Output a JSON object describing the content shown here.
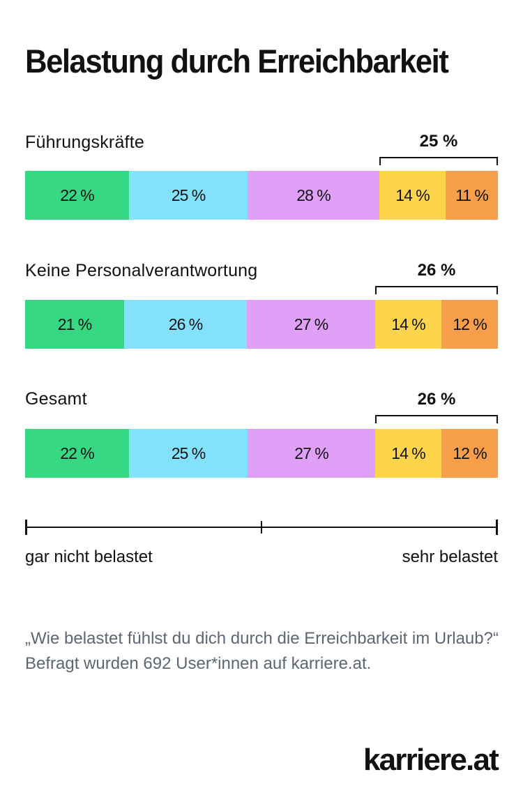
{
  "title": "Belastung durch Erreichbarkeit",
  "colors": {
    "gar_nicht": "#36d884",
    "stufe2": "#84e1fb",
    "stufe3": "#e1a0f7",
    "stufe4": "#fdd54d",
    "sehr": "#f69e49",
    "text": "#111111",
    "footnote": "#5d6672"
  },
  "chart_data": {
    "type": "bar",
    "orientation": "horizontal",
    "stacked": true,
    "unit": "%",
    "categories": [
      "Führungskräfte",
      "Keine Personalverantwortung",
      "Gesamt"
    ],
    "series": [
      {
        "values": [
          22,
          21,
          22
        ],
        "labels": [
          "22 %",
          "21 %",
          "22 %"
        ],
        "color": "#36d884"
      },
      {
        "values": [
          25,
          26,
          25
        ],
        "labels": [
          "25 %",
          "26 %",
          "25 %"
        ],
        "color": "#84e1fb"
      },
      {
        "values": [
          28,
          27,
          27
        ],
        "labels": [
          "28 %",
          "27 %",
          "27 %"
        ],
        "color": "#e1a0f7"
      },
      {
        "values": [
          14,
          14,
          14
        ],
        "labels": [
          "14 %",
          "14 %",
          "14 %"
        ],
        "color": "#fdd54d"
      },
      {
        "values": [
          11,
          12,
          12
        ],
        "labels": [
          "11 %",
          "12 %",
          "12 %"
        ],
        "color": "#f69e49"
      }
    ],
    "bracket_totals": [
      "25 %",
      "26 %",
      "26 %"
    ],
    "scale": {
      "left_label": "gar nicht belastet",
      "right_label": "sehr belastet"
    }
  },
  "footnote": "„Wie belastet fühlst du dich durch die Erreichbarkeit im Urlaub?“ Befragt wurden 692 User*innen auf karriere.at.",
  "brand": "karriere.at"
}
